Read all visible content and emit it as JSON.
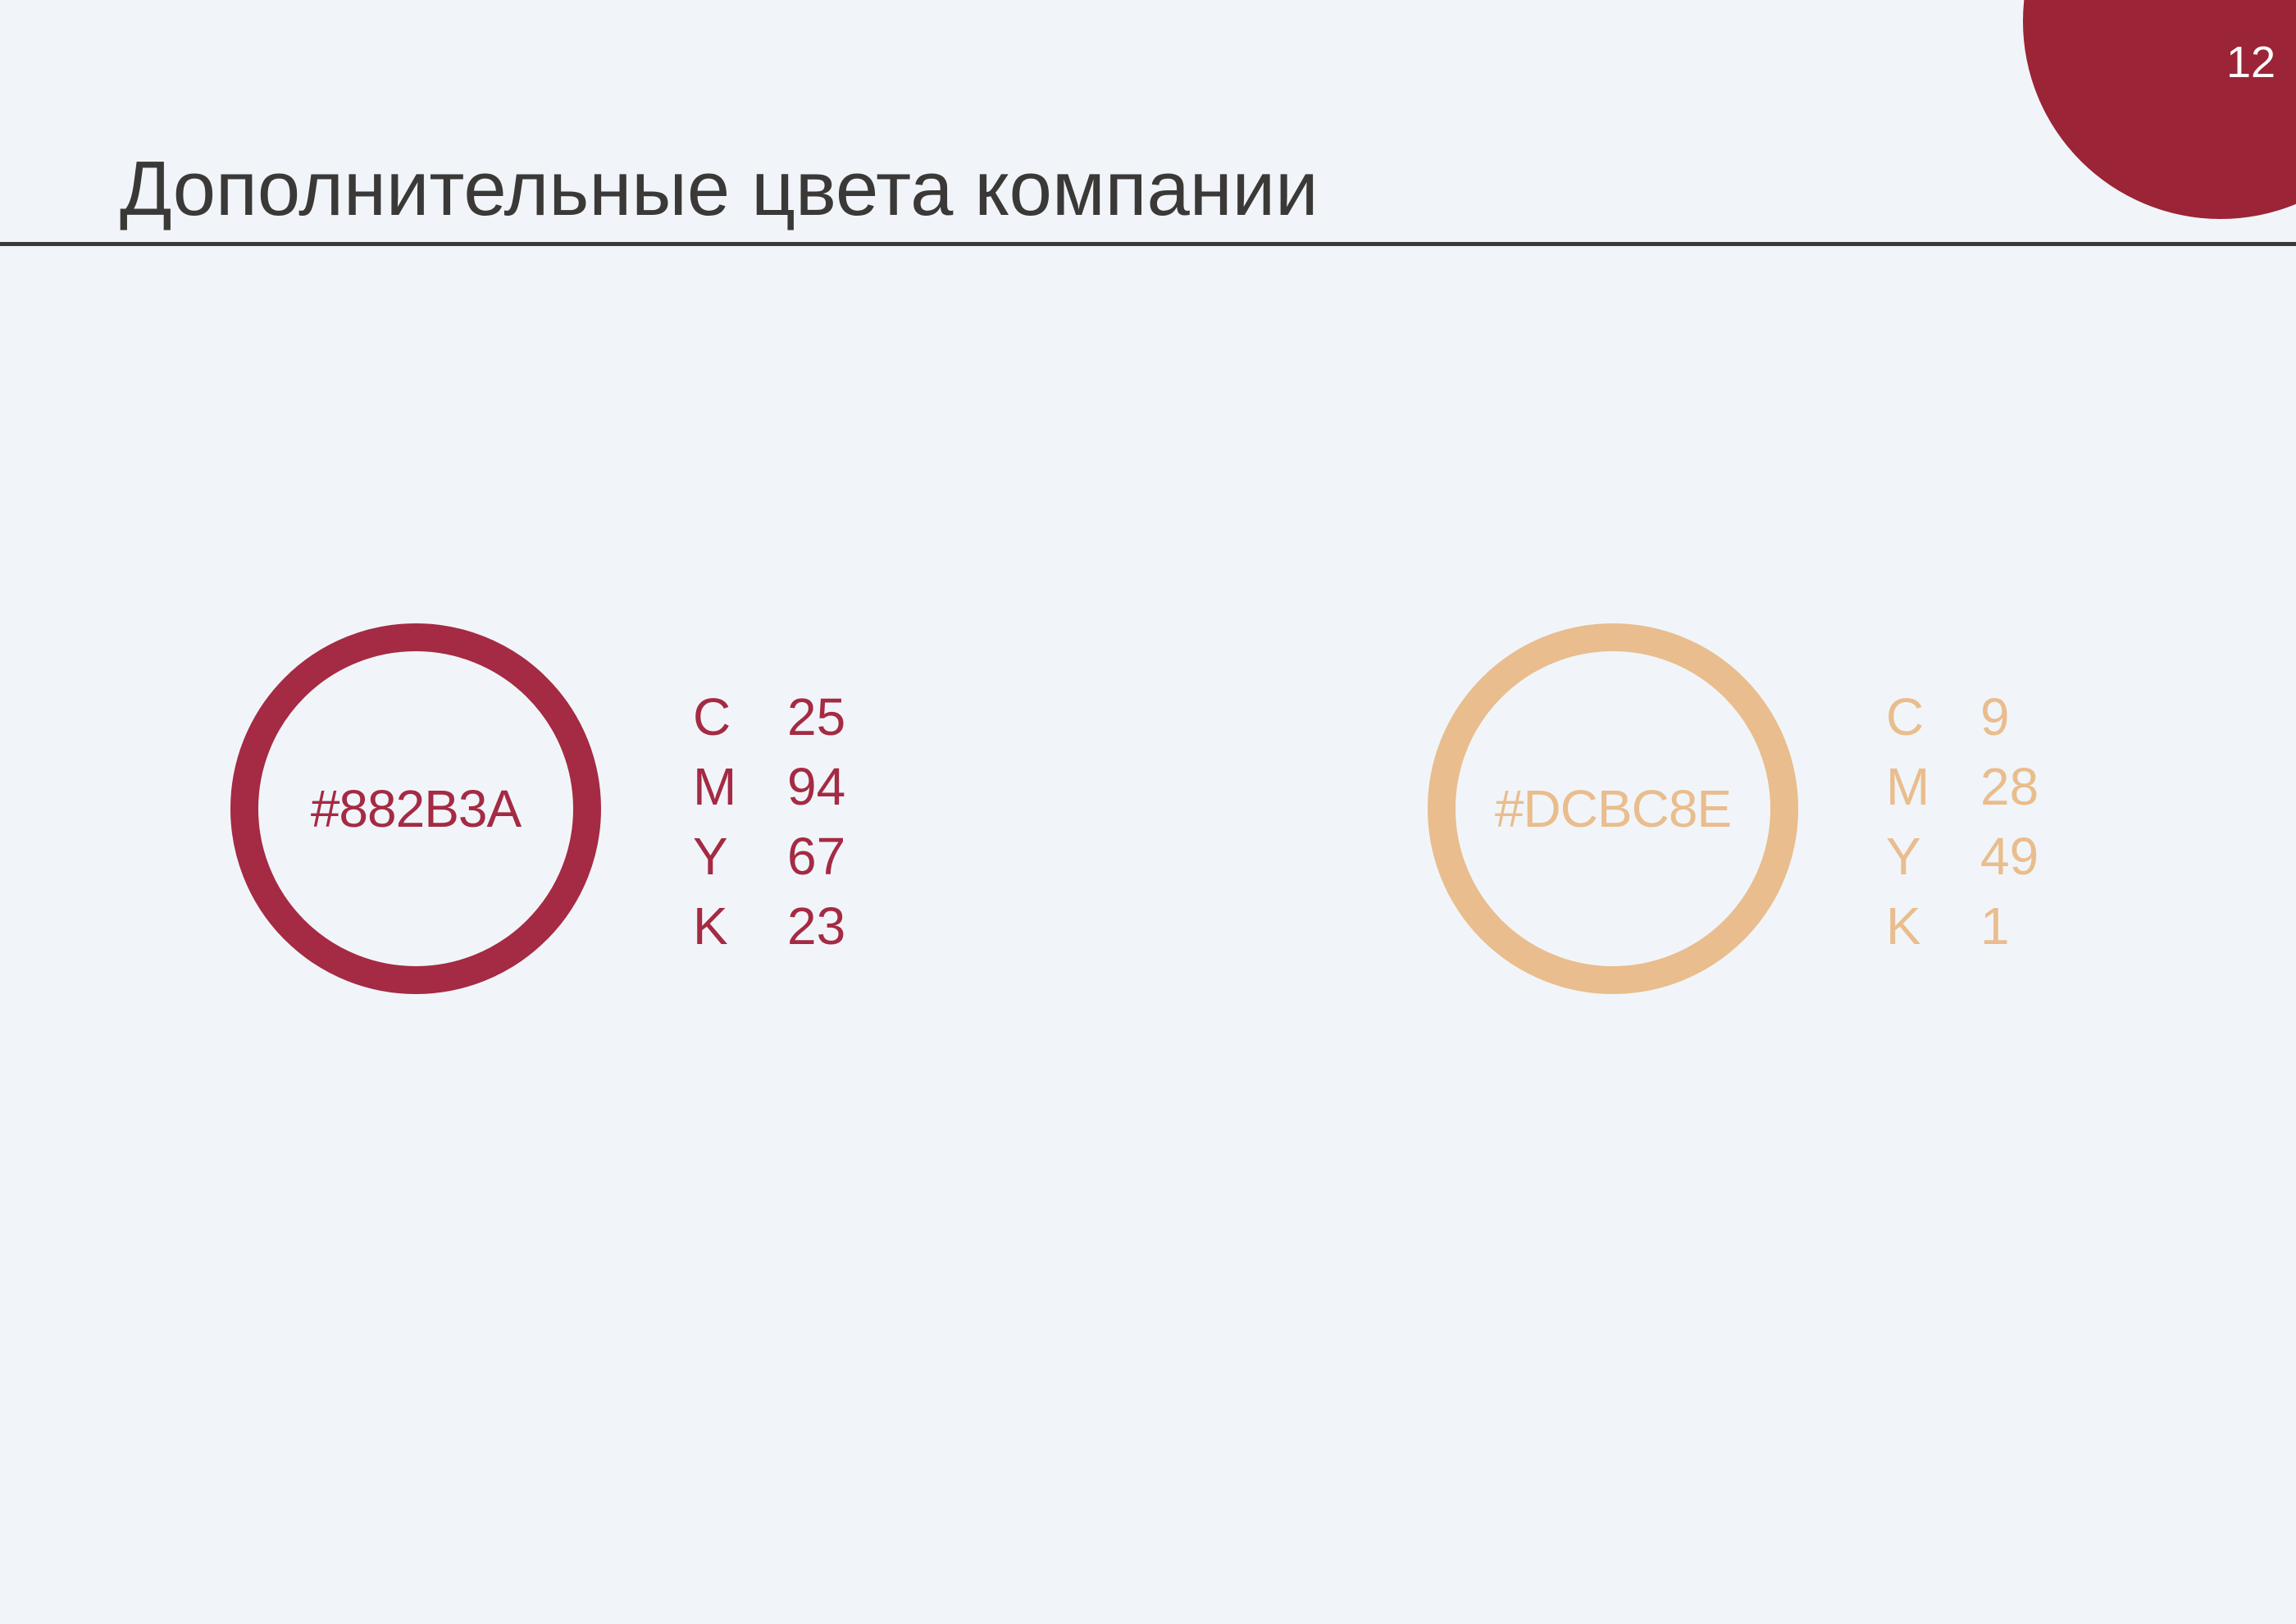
{
  "page": {
    "number": "12",
    "number_color": "#FFFFFF",
    "background": "#F1F5F9"
  },
  "decor": {
    "corner_circle_color": "#9C2437"
  },
  "header": {
    "title": "Дополнительные цвета компании",
    "title_color": "#3B3937",
    "rule_color": "#3A3938"
  },
  "swatches": [
    {
      "hex_label": "#882B3A",
      "display_color": "#A52A43",
      "rows": [
        {
          "label": "C",
          "value": "25"
        },
        {
          "label": "M",
          "value": "94"
        },
        {
          "label": "Y",
          "value": "67"
        },
        {
          "label": "K",
          "value": "23"
        }
      ]
    },
    {
      "hex_label": "#DCBC8E",
      "display_color": "#E9BD8D",
      "rows": [
        {
          "label": "C",
          "value": "9"
        },
        {
          "label": "M",
          "value": "28"
        },
        {
          "label": "Y",
          "value": "49"
        },
        {
          "label": "K",
          "value": "1"
        }
      ]
    }
  ]
}
